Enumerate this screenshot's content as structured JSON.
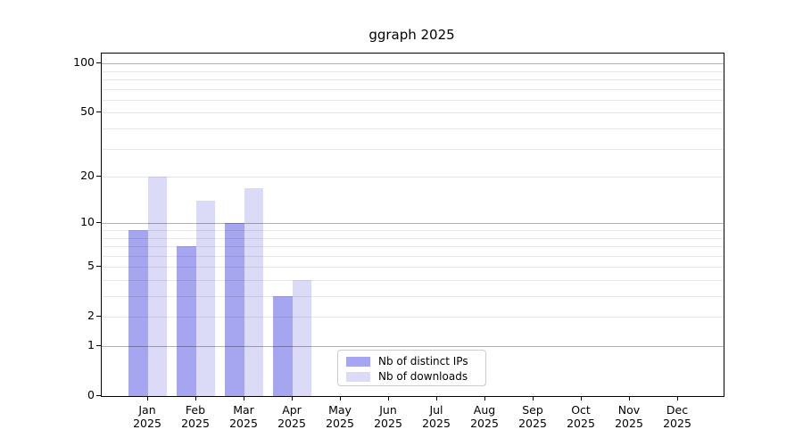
{
  "title": "ggraph 2025",
  "chart_data": {
    "type": "bar",
    "title": "ggraph 2025",
    "categories": [
      "Jan 2025",
      "Feb 2025",
      "Mar 2025",
      "Apr 2025",
      "May 2025",
      "Jun 2025",
      "Jul 2025",
      "Aug 2025",
      "Sep 2025",
      "Oct 2025",
      "Nov 2025",
      "Dec 2025"
    ],
    "series": [
      {
        "name": "Nb of distinct IPs",
        "color": "#a6a6f0",
        "values": [
          9,
          7,
          10,
          3,
          null,
          null,
          null,
          null,
          null,
          null,
          null,
          null
        ]
      },
      {
        "name": "Nb of downloads",
        "color": "#dbdbf8",
        "values": [
          20,
          14,
          17,
          4,
          null,
          null,
          null,
          null,
          null,
          null,
          null,
          null
        ]
      }
    ],
    "xlabel": "",
    "ylabel": "",
    "y_scale": "log1p",
    "ylim": [
      0,
      115
    ],
    "y_tick_labels": [
      0,
      1,
      2,
      5,
      10,
      20,
      50,
      100
    ],
    "y_major_gridlines": [
      1,
      10,
      100
    ],
    "y_minor_gridlines": [
      2,
      3,
      4,
      5,
      6,
      7,
      8,
      9,
      20,
      30,
      40,
      50,
      60,
      70,
      80,
      90
    ],
    "grid": true,
    "legend_position": "lower center"
  }
}
